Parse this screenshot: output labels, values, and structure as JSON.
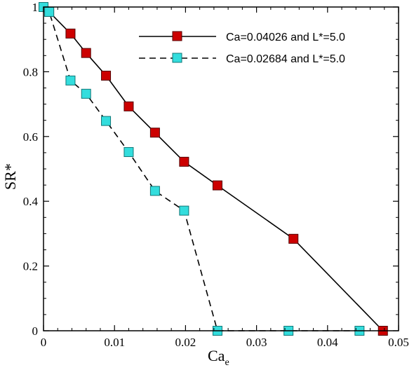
{
  "chart_data": {
    "type": "line",
    "title": "",
    "xlabel": "Ca",
    "xlabel_subscript": "e",
    "ylabel": "SR*",
    "xlim": [
      0,
      0.05
    ],
    "ylim": [
      0,
      1
    ],
    "xticks": [
      0,
      0.01,
      0.02,
      0.03,
      0.04,
      0.05
    ],
    "yticks": [
      0,
      0.2,
      0.4,
      0.6,
      0.8,
      1
    ],
    "xtick_labels": [
      "0",
      "0.01",
      "0.02",
      "0.03",
      "0.04",
      "0.05"
    ],
    "ytick_labels": [
      "0",
      "0.2",
      "0.4",
      "0.6",
      "0.8",
      "1"
    ],
    "grid": false,
    "legend_position": "top-right",
    "series": [
      {
        "name": "Ca=0.04026 and L*=5.0",
        "line_style": "solid",
        "marker": "square",
        "marker_color": "#cc0000",
        "x": [
          0,
          0.0008,
          0.0038,
          0.006,
          0.0088,
          0.012,
          0.0157,
          0.0198,
          0.0245,
          0.0352,
          0.0478
        ],
        "y": [
          1.0,
          0.985,
          0.918,
          0.858,
          0.788,
          0.693,
          0.612,
          0.522,
          0.449,
          0.284,
          0.0
        ]
      },
      {
        "name": "Ca=0.02684 and L*=5.0",
        "line_style": "dashed",
        "marker": "square",
        "marker_color": "#33dddd",
        "x": [
          0,
          0.0008,
          0.0038,
          0.006,
          0.0088,
          0.012,
          0.0157,
          0.0198,
          0.0245,
          0.0345,
          0.0445
        ],
        "y": [
          1.0,
          0.985,
          0.773,
          0.732,
          0.648,
          0.552,
          0.432,
          0.371,
          0.0,
          0.0,
          0.0
        ]
      }
    ]
  }
}
